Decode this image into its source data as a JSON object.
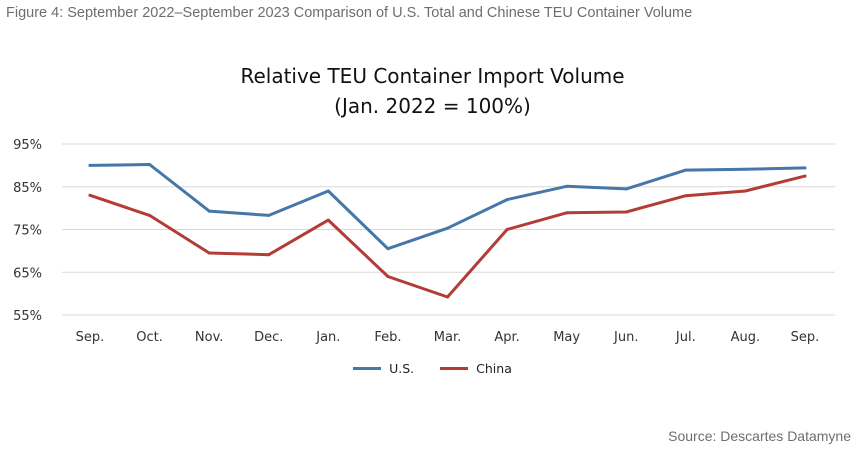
{
  "caption": "Figure 4: September 2022–September 2023 Comparison of U.S. Total and Chinese TEU Container Volume",
  "source": "Source: Descartes Datamyne",
  "chart_data": {
    "type": "line",
    "title": "Relative TEU Container Import  Volume",
    "subtitle": "(Jan. 2022 = 100%)",
    "xlabel": "",
    "ylabel": "",
    "categories": [
      "Sep.",
      "Oct.",
      "Nov.",
      "Dec.",
      "Jan.",
      "Feb.",
      "Mar.",
      "Apr.",
      "May",
      "Jun.",
      "Jul.",
      "Aug.",
      "Sep."
    ],
    "y_ticks": [
      "95%",
      "85%",
      "75%",
      "65%",
      "55%"
    ],
    "ylim": [
      55,
      95
    ],
    "grid": true,
    "legend_position": "bottom",
    "series": [
      {
        "name": "U.S.",
        "color": "#4677a9",
        "values": [
          90,
          90.2,
          79.3,
          78.3,
          84,
          70.5,
          75.3,
          82,
          85.1,
          84.5,
          88.9,
          89.1,
          89.4
        ]
      },
      {
        "name": "China",
        "color": "#b33c37",
        "values": [
          83,
          78.3,
          69.5,
          69.1,
          77.2,
          64,
          59.2,
          75,
          78.9,
          79.1,
          82.9,
          84,
          87.5
        ]
      }
    ]
  }
}
